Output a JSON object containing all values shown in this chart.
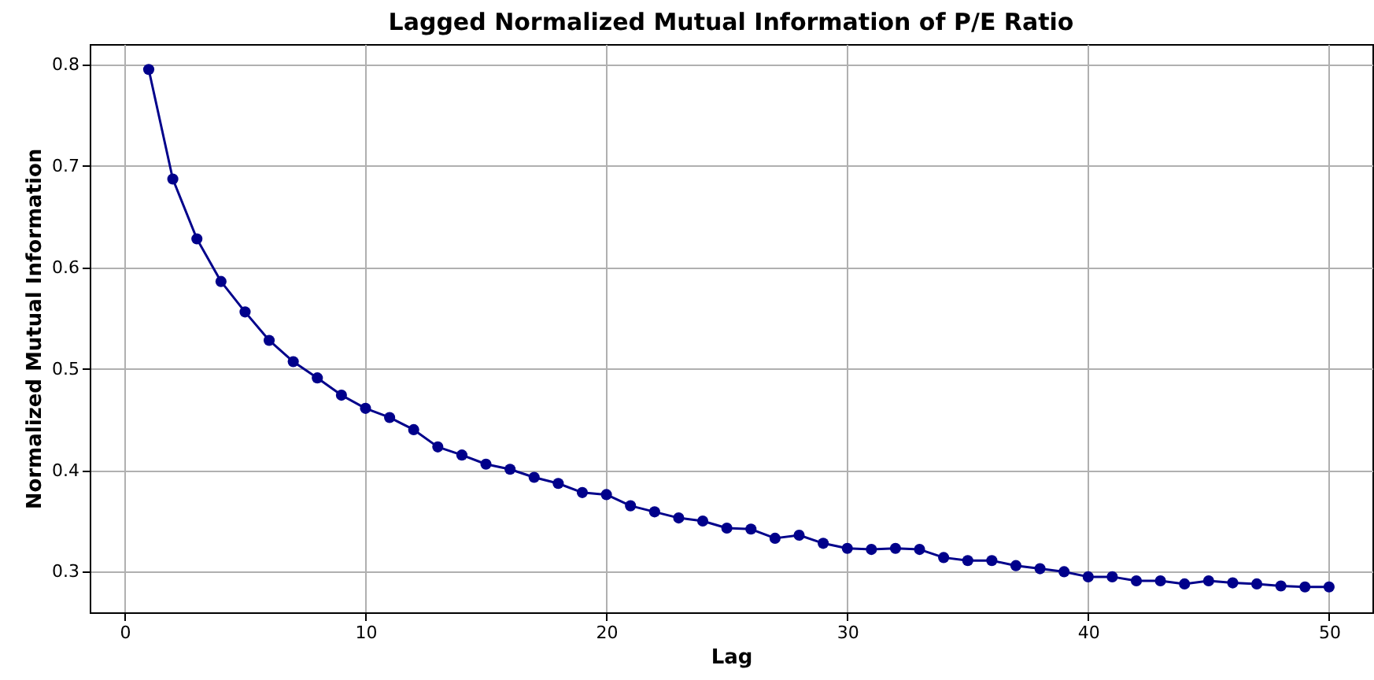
{
  "chart_data": {
    "type": "line",
    "title": "Lagged Normalized Mutual Information of P/E Ratio",
    "xlabel": "Lag",
    "ylabel": "Normalized Mutual Information",
    "x": [
      1,
      2,
      3,
      4,
      5,
      6,
      7,
      8,
      9,
      10,
      11,
      12,
      13,
      14,
      15,
      16,
      17,
      18,
      19,
      20,
      21,
      22,
      23,
      24,
      25,
      26,
      27,
      28,
      29,
      30,
      31,
      32,
      33,
      34,
      35,
      36,
      37,
      38,
      39,
      40,
      41,
      42,
      43,
      44,
      45,
      46,
      47,
      48,
      49,
      50
    ],
    "series": [
      {
        "color": "#00008b",
        "values": [
          0.795,
          0.687,
          0.628,
          0.586,
          0.556,
          0.528,
          0.507,
          0.491,
          0.474,
          0.461,
          0.452,
          0.44,
          0.423,
          0.415,
          0.406,
          0.401,
          0.393,
          0.387,
          0.378,
          0.376,
          0.365,
          0.359,
          0.353,
          0.35,
          0.343,
          0.342,
          0.333,
          0.336,
          0.328,
          0.323,
          0.322,
          0.323,
          0.322,
          0.314,
          0.311,
          0.311,
          0.306,
          0.303,
          0.3,
          0.295,
          0.295,
          0.291,
          0.291,
          0.288,
          0.291,
          0.289,
          0.288,
          0.286,
          0.285,
          0.285
        ]
      }
    ],
    "xlim": [
      -1.45,
      51.8
    ],
    "xticks": [
      0,
      10,
      20,
      30,
      40,
      50
    ],
    "ylim": [
      0.26,
      0.82
    ],
    "yticks": [
      0.3,
      0.4,
      0.5,
      0.6,
      0.7,
      0.8
    ],
    "grid": true,
    "marker": "circle",
    "line_style": "solid"
  }
}
